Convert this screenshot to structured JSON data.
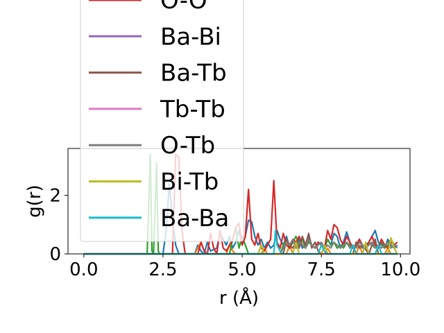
{
  "chart_data": {
    "type": "line",
    "xlabel": "r (Å)",
    "ylabel": "g(r)",
    "xlim": [
      -0.5,
      10.3
    ],
    "ylim": [
      0,
      3.6
    ],
    "xticks": [
      "0.0",
      "2.5",
      "5.0",
      "7.5",
      "10.0"
    ],
    "xtick_values": [
      0,
      2.5,
      5.0,
      7.5,
      10.0
    ],
    "yticks": [
      "0",
      "2"
    ],
    "ytick_values": [
      0,
      2
    ],
    "grid": false,
    "legend_position": "upper-left, overlapping plot",
    "series": [
      {
        "name": "",
        "color": "#1f77b4",
        "x": [
          0,
          2.5,
          2.6,
          2.7,
          2.8,
          2.9,
          3.0,
          3.5,
          3.6,
          3.7,
          3.8,
          3.9,
          4.0,
          4.2,
          4.3,
          4.4,
          4.5,
          4.6,
          4.7,
          4.8,
          4.9,
          5.0,
          5.1,
          5.2,
          5.3,
          5.4,
          5.5,
          5.6,
          5.7,
          5.8,
          5.9,
          6.0,
          6.1,
          6.2,
          6.3,
          6.4,
          6.5,
          6.6,
          6.7,
          6.8,
          6.9,
          7.0,
          7.1,
          7.2,
          7.3,
          7.4,
          7.5,
          7.6,
          7.7,
          7.8,
          7.9,
          8.0,
          8.1,
          8.2,
          8.3,
          8.4,
          8.5,
          8.6,
          8.7,
          8.8,
          8.9,
          9.0,
          9.1,
          9.2,
          9.3,
          9.4,
          9.5,
          9.6,
          9.7,
          9.8,
          9.9
        ],
        "y": [
          0,
          0,
          0.8,
          2.4,
          1.2,
          0.3,
          0,
          0,
          0.3,
          0.1,
          0,
          0.4,
          0.1,
          0.2,
          0.7,
          0.5,
          0.3,
          0.6,
          0.2,
          0.4,
          0.8,
          0.3,
          0.6,
          1.15,
          1.1,
          0.6,
          0.3,
          0.5,
          0.2,
          0.4,
          0.2,
          0.3,
          0.8,
          0.5,
          0.3,
          0.6,
          0.2,
          0.4,
          0.3,
          0.5,
          0.2,
          0.3,
          0.6,
          0.3,
          0.2,
          0.4,
          0.3,
          0.2,
          0.5,
          0.3,
          0.7,
          0.6,
          0.2,
          0.4,
          0.75,
          0.4,
          0.2,
          0.3,
          0.5,
          0.2,
          0.3,
          0.4,
          0.6,
          0.8,
          0.4,
          0.3,
          0.2,
          0.5,
          0.3,
          0.2,
          0.3
        ]
      },
      {
        "name": "",
        "color": "#ff7f0e",
        "x": [
          0,
          3.5,
          3.6,
          3.7,
          3.8,
          3.9,
          4.5,
          4.6,
          4.7,
          4.8,
          5.6,
          5.7,
          5.8,
          6.4,
          6.5,
          6.6,
          7.6,
          7.7,
          7.8,
          8.6,
          8.7,
          8.8,
          9.5,
          9.6,
          9.7,
          9.9
        ],
        "y": [
          0,
          0,
          0.2,
          0.4,
          0.1,
          0,
          0,
          0.3,
          0.1,
          0,
          0,
          0.2,
          0,
          0,
          0.3,
          0,
          0,
          0.2,
          0,
          0,
          0.3,
          0,
          0,
          0.2,
          0,
          0
        ]
      },
      {
        "name": "",
        "color": "#2ca02c",
        "x": [
          0,
          2.0,
          2.1,
          2.15,
          2.2,
          2.3,
          2.35,
          2.4,
          2.5,
          4.6,
          4.7,
          4.8,
          4.9,
          5.0,
          5.1,
          5.2,
          6.2,
          6.3,
          6.4,
          6.5,
          6.6,
          6.7,
          6.8,
          6.9,
          7.0,
          7.1,
          7.2,
          7.3,
          7.4,
          7.5,
          7.6,
          7.7,
          7.8,
          7.9,
          8.0,
          8.1,
          8.2,
          8.3,
          8.4,
          8.5,
          8.6,
          8.7,
          8.8,
          8.9,
          9.0,
          9.1,
          9.2,
          9.3,
          9.4,
          9.5,
          9.6,
          9.7,
          9.8,
          9.9
        ],
        "y": [
          0,
          0,
          3.4,
          0.1,
          0,
          3.1,
          0.1,
          0,
          0,
          0,
          0.5,
          0.9,
          0.2,
          0.6,
          0.3,
          0,
          0,
          0.3,
          0.5,
          0.2,
          0.4,
          0.6,
          0.3,
          0.5,
          0.2,
          0.4,
          0.3,
          0.2,
          0.4,
          0.3,
          0.2,
          0.5,
          0.3,
          0.4,
          0.2,
          0.3,
          0.2,
          0.4,
          0.3,
          0.2,
          0.3,
          0.4,
          0.3,
          0.2,
          0.4,
          0.3,
          0.2,
          0.3,
          0.4,
          0.2,
          0.3,
          0.5,
          0.3,
          0.2
        ]
      },
      {
        "name": "O-O",
        "color": "#d62728",
        "x": [
          0,
          2.8,
          2.9,
          3.0,
          3.1,
          3.2,
          3.6,
          3.7,
          3.8,
          3.9,
          4.0,
          4.1,
          4.2,
          4.3,
          4.4,
          4.5,
          4.6,
          4.7,
          4.8,
          4.9,
          5.0,
          5.1,
          5.2,
          5.3,
          5.4,
          5.5,
          5.6,
          5.7,
          5.8,
          5.9,
          6.0,
          6.1,
          6.2,
          6.3,
          6.4,
          6.5,
          6.6,
          6.7,
          6.8,
          6.9,
          7.0,
          7.1,
          7.2,
          7.3,
          7.4,
          7.5,
          7.6,
          7.7,
          7.8,
          7.9,
          8.0,
          8.1,
          8.2,
          8.3,
          8.4,
          8.5,
          8.6,
          8.7,
          8.8,
          8.9,
          9.0,
          9.1,
          9.2,
          9.3,
          9.4,
          9.5,
          9.6,
          9.7,
          9.8,
          9.9
        ],
        "y": [
          0,
          0,
          3.4,
          3.3,
          0.8,
          0,
          0,
          0.4,
          0.1,
          0,
          0.7,
          0.2,
          0,
          0.8,
          0.2,
          0.1,
          0.3,
          0.5,
          0.9,
          1.05,
          0.3,
          0.6,
          2.2,
          0.5,
          0.3,
          0.7,
          0.2,
          0.1,
          0.3,
          0.5,
          2.5,
          0.4,
          0.2,
          0.7,
          0.3,
          0.2,
          0.5,
          0.4,
          0.6,
          0.3,
          0.2,
          0.5,
          0.3,
          0.2,
          0.4,
          0.3,
          0.2,
          0.8,
          0.5,
          1.0,
          0.9,
          0.5,
          0.3,
          0.6,
          0.4,
          0.2,
          0.3,
          0.5,
          0.3,
          0.2,
          0.4,
          0.6,
          0.3,
          0.2,
          0.5,
          0.3,
          0.2,
          0.4,
          0.3,
          0.4
        ]
      },
      {
        "name": "Ba-Bi",
        "color": "#9467bd",
        "x": [
          0,
          9.9
        ],
        "y": [
          0,
          0
        ]
      },
      {
        "name": "Ba-Tb",
        "color": "#8c564b",
        "x": [
          0,
          6.3,
          6.4,
          6.5,
          6.6,
          6.7,
          6.8,
          6.9,
          7.0,
          7.1,
          7.2,
          7.3,
          7.4,
          7.5,
          8.5,
          8.6,
          8.7,
          8.8,
          9.0,
          9.1,
          9.2,
          9.3,
          9.9
        ],
        "y": [
          0,
          0,
          0.5,
          0.3,
          0.2,
          0.4,
          0.2,
          0.6,
          0.3,
          0.7,
          0.2,
          0.4,
          0.1,
          0,
          0,
          0.4,
          0.2,
          0.3,
          0,
          0.3,
          0.5,
          0,
          0
        ]
      },
      {
        "name": "Tb-Tb",
        "color": "#e377c2",
        "x": [
          0,
          9.9
        ],
        "y": [
          0,
          0
        ]
      },
      {
        "name": "O-Tb",
        "color": "#7f7f7f",
        "x": [
          0,
          6.2,
          6.3,
          6.4,
          6.5,
          6.6,
          6.7,
          6.8,
          6.9,
          7.0,
          7.1,
          7.2,
          7.3,
          7.4,
          7.5,
          7.6,
          7.7,
          7.8,
          7.9,
          8.0,
          8.1,
          8.2,
          8.3,
          8.4,
          8.5,
          8.6,
          8.7,
          8.8,
          8.9,
          9.0,
          9.1,
          9.2,
          9.3,
          9.4,
          9.5,
          9.6,
          9.7,
          9.8,
          9.9
        ],
        "y": [
          0,
          0,
          0.2,
          0.4,
          0.3,
          0.5,
          0.2,
          0.4,
          0.3,
          0.2,
          0.5,
          0.3,
          0.2,
          0.3,
          0.4,
          0.2,
          0.3,
          0.2,
          0.4,
          0.3,
          0.2,
          0.3,
          0.4,
          0.2,
          0.3,
          0.2,
          0.4,
          0.3,
          0.2,
          0.3,
          0.4,
          0.2,
          0.3,
          0.2,
          0.3,
          0.4,
          0.2,
          0.3,
          0.2
        ]
      },
      {
        "name": "Bi-Tb",
        "color": "#bcbd22",
        "x": [
          0,
          5.5,
          5.6,
          5.7,
          6.6,
          6.7,
          6.8,
          7.5,
          7.6,
          7.7,
          8.8,
          8.9,
          9.0,
          9.6,
          9.7,
          9.8,
          9.9
        ],
        "y": [
          0,
          0,
          0.3,
          0,
          0,
          0.4,
          0,
          0,
          0.3,
          0,
          0,
          0.4,
          0,
          0,
          0.55,
          0.2,
          0
        ]
      },
      {
        "name": "Ba-Ba",
        "color": "#17becf",
        "x": [
          0,
          6.0,
          6.05,
          6.1,
          6.2,
          6.3,
          7.4,
          7.5,
          7.6,
          7.7,
          8.4,
          8.5,
          8.6,
          9.2,
          9.3,
          9.4,
          9.9
        ],
        "y": [
          0,
          0,
          0.8,
          0.3,
          0.1,
          0,
          0,
          0.3,
          0.1,
          0,
          0,
          0.3,
          0,
          0,
          0.3,
          0,
          0
        ]
      }
    ]
  }
}
